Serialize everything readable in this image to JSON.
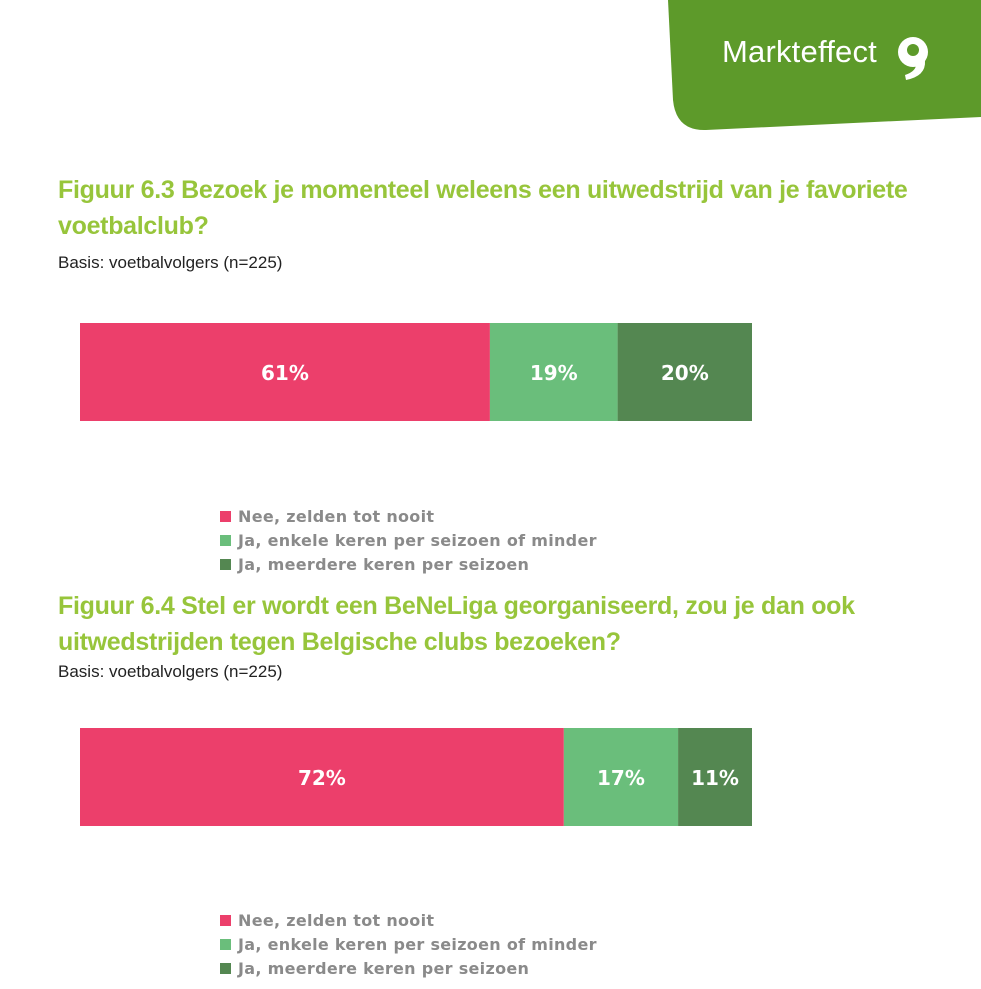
{
  "brand": {
    "name": "Markteffect",
    "color": "#5d9a2a"
  },
  "charts": [
    {
      "title": "Figuur 6.3 Bezoek je momenteel weleens een uitwedstrijd van je favoriete voetbalclub?",
      "basis": "Basis: voetbalvolgers (n=225)"
    },
    {
      "title": "Figuur 6.4 Stel er wordt een BeNeLiga georganiseerd, zou je dan ook uitwedstrijden tegen Belgische clubs bezoeken?",
      "basis": "Basis: voetbalvolgers (n=225)"
    }
  ],
  "chart_data": [
    {
      "type": "bar",
      "orientation": "horizontal",
      "stacked": true,
      "series": [
        {
          "name": "Nee, zelden tot nooit",
          "values": [
            61
          ],
          "label": "61%",
          "color": "#ec3f6b"
        },
        {
          "name": "Ja, enkele keren per seizoen of minder",
          "values": [
            19
          ],
          "label": "19%",
          "color": "#6abe7b"
        },
        {
          "name": "Ja, meerdere keren per seizoen",
          "values": [
            20
          ],
          "label": "20%",
          "color": "#548751"
        }
      ],
      "xlim": [
        0,
        100
      ],
      "xticks": [
        "0%",
        "20%",
        "40%",
        "60%",
        "80%",
        "100%"
      ],
      "grid": false,
      "legend": "bottom"
    },
    {
      "type": "bar",
      "orientation": "horizontal",
      "stacked": true,
      "series": [
        {
          "name": "Nee, zelden tot nooit",
          "values": [
            72
          ],
          "label": "72%",
          "color": "#ec3f6b"
        },
        {
          "name": "Ja, enkele keren per seizoen of minder",
          "values": [
            17
          ],
          "label": "17%",
          "color": "#6abe7b"
        },
        {
          "name": "Ja, meerdere keren per seizoen",
          "values": [
            11
          ],
          "label": "11%",
          "color": "#548751"
        }
      ],
      "xlim": [
        0,
        100
      ],
      "xticks": [
        "0%",
        "20%",
        "40%",
        "60%",
        "80%",
        "100%"
      ],
      "grid": false,
      "legend": "bottom"
    }
  ]
}
